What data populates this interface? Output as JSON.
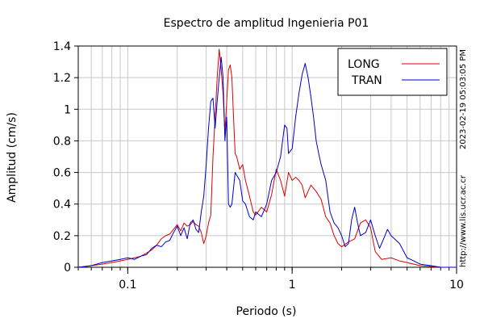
{
  "chart_data": {
    "type": "line",
    "title": "Espectro de amplitud Ingenieria P01",
    "xlabel": "Periodo (s)",
    "ylabel": "Amplitud (cm/s)",
    "xscale": "log",
    "xlim": [
      0.05,
      10
    ],
    "ylim": [
      0,
      1.4
    ],
    "x_ticks": [
      0.1,
      1,
      10
    ],
    "x_tick_labels": [
      "0.1",
      "1",
      "10"
    ],
    "y_ticks": [
      0,
      0.2,
      0.4,
      0.6,
      0.8,
      1,
      1.2,
      1.4
    ],
    "y_tick_labels": [
      "0",
      "0.2",
      "0.4",
      "0.6",
      "0.8",
      "1",
      "1.2",
      "1.4"
    ],
    "grid": true,
    "legend_position": "top-right",
    "series": [
      {
        "name": "LONG",
        "color": "#dd0000",
        "points": [
          [
            0.05,
            0.0
          ],
          [
            0.06,
            0.01
          ],
          [
            0.07,
            0.02
          ],
          [
            0.08,
            0.03
          ],
          [
            0.09,
            0.04
          ],
          [
            0.1,
            0.05
          ],
          [
            0.11,
            0.06
          ],
          [
            0.12,
            0.07
          ],
          [
            0.13,
            0.09
          ],
          [
            0.14,
            0.11
          ],
          [
            0.15,
            0.14
          ],
          [
            0.16,
            0.18
          ],
          [
            0.17,
            0.2
          ],
          [
            0.18,
            0.21
          ],
          [
            0.19,
            0.24
          ],
          [
            0.2,
            0.27
          ],
          [
            0.21,
            0.23
          ],
          [
            0.22,
            0.28
          ],
          [
            0.23,
            0.26
          ],
          [
            0.24,
            0.27
          ],
          [
            0.25,
            0.29
          ],
          [
            0.26,
            0.27
          ],
          [
            0.27,
            0.26
          ],
          [
            0.28,
            0.22
          ],
          [
            0.29,
            0.15
          ],
          [
            0.3,
            0.2
          ],
          [
            0.31,
            0.28
          ],
          [
            0.32,
            0.33
          ],
          [
            0.33,
            0.7
          ],
          [
            0.34,
            0.95
          ],
          [
            0.35,
            1.2
          ],
          [
            0.36,
            1.38
          ],
          [
            0.37,
            1.25
          ],
          [
            0.38,
            1.1
          ],
          [
            0.39,
            0.85
          ],
          [
            0.4,
            1.05
          ],
          [
            0.41,
            1.25
          ],
          [
            0.42,
            1.28
          ],
          [
            0.43,
            1.2
          ],
          [
            0.44,
            0.95
          ],
          [
            0.45,
            0.72
          ],
          [
            0.46,
            0.7
          ],
          [
            0.48,
            0.62
          ],
          [
            0.5,
            0.65
          ],
          [
            0.52,
            0.55
          ],
          [
            0.55,
            0.45
          ],
          [
            0.58,
            0.35
          ],
          [
            0.6,
            0.33
          ],
          [
            0.65,
            0.38
          ],
          [
            0.7,
            0.35
          ],
          [
            0.75,
            0.46
          ],
          [
            0.8,
            0.62
          ],
          [
            0.85,
            0.55
          ],
          [
            0.9,
            0.45
          ],
          [
            0.95,
            0.6
          ],
          [
            1.0,
            0.55
          ],
          [
            1.05,
            0.57
          ],
          [
            1.1,
            0.55
          ],
          [
            1.15,
            0.52
          ],
          [
            1.2,
            0.44
          ],
          [
            1.3,
            0.52
          ],
          [
            1.4,
            0.48
          ],
          [
            1.5,
            0.43
          ],
          [
            1.6,
            0.32
          ],
          [
            1.7,
            0.28
          ],
          [
            1.8,
            0.2
          ],
          [
            1.9,
            0.15
          ],
          [
            2.0,
            0.13
          ],
          [
            2.2,
            0.16
          ],
          [
            2.4,
            0.18
          ],
          [
            2.6,
            0.28
          ],
          [
            2.8,
            0.3
          ],
          [
            3.0,
            0.25
          ],
          [
            3.2,
            0.1
          ],
          [
            3.5,
            0.05
          ],
          [
            4.0,
            0.06
          ],
          [
            4.5,
            0.04
          ],
          [
            5.0,
            0.03
          ],
          [
            6.0,
            0.01
          ],
          [
            8.0,
            0.0
          ],
          [
            10.0,
            0.0
          ]
        ]
      },
      {
        "name": "TRAN",
        "color": "#0000cc",
        "points": [
          [
            0.05,
            0.0
          ],
          [
            0.06,
            0.01
          ],
          [
            0.07,
            0.03
          ],
          [
            0.08,
            0.04
          ],
          [
            0.09,
            0.05
          ],
          [
            0.1,
            0.06
          ],
          [
            0.11,
            0.05
          ],
          [
            0.12,
            0.07
          ],
          [
            0.13,
            0.08
          ],
          [
            0.14,
            0.12
          ],
          [
            0.15,
            0.14
          ],
          [
            0.16,
            0.13
          ],
          [
            0.17,
            0.16
          ],
          [
            0.18,
            0.17
          ],
          [
            0.19,
            0.22
          ],
          [
            0.2,
            0.26
          ],
          [
            0.21,
            0.2
          ],
          [
            0.22,
            0.25
          ],
          [
            0.23,
            0.18
          ],
          [
            0.24,
            0.28
          ],
          [
            0.25,
            0.3
          ],
          [
            0.26,
            0.24
          ],
          [
            0.27,
            0.22
          ],
          [
            0.28,
            0.35
          ],
          [
            0.29,
            0.45
          ],
          [
            0.3,
            0.65
          ],
          [
            0.31,
            0.88
          ],
          [
            0.32,
            1.05
          ],
          [
            0.33,
            1.07
          ],
          [
            0.34,
            0.88
          ],
          [
            0.35,
            1.05
          ],
          [
            0.36,
            1.2
          ],
          [
            0.37,
            1.33
          ],
          [
            0.38,
            1.2
          ],
          [
            0.39,
            0.8
          ],
          [
            0.4,
            0.95
          ],
          [
            0.41,
            0.4
          ],
          [
            0.42,
            0.38
          ],
          [
            0.43,
            0.4
          ],
          [
            0.45,
            0.6
          ],
          [
            0.48,
            0.55
          ],
          [
            0.5,
            0.42
          ],
          [
            0.52,
            0.4
          ],
          [
            0.55,
            0.32
          ],
          [
            0.58,
            0.3
          ],
          [
            0.6,
            0.35
          ],
          [
            0.65,
            0.32
          ],
          [
            0.7,
            0.4
          ],
          [
            0.75,
            0.55
          ],
          [
            0.8,
            0.6
          ],
          [
            0.85,
            0.7
          ],
          [
            0.9,
            0.9
          ],
          [
            0.93,
            0.88
          ],
          [
            0.95,
            0.72
          ],
          [
            1.0,
            0.75
          ],
          [
            1.05,
            0.95
          ],
          [
            1.1,
            1.1
          ],
          [
            1.15,
            1.22
          ],
          [
            1.2,
            1.29
          ],
          [
            1.25,
            1.2
          ],
          [
            1.3,
            1.08
          ],
          [
            1.35,
            0.95
          ],
          [
            1.4,
            0.8
          ],
          [
            1.45,
            0.72
          ],
          [
            1.5,
            0.65
          ],
          [
            1.6,
            0.55
          ],
          [
            1.7,
            0.35
          ],
          [
            1.8,
            0.28
          ],
          [
            1.9,
            0.25
          ],
          [
            2.0,
            0.2
          ],
          [
            2.1,
            0.13
          ],
          [
            2.2,
            0.15
          ],
          [
            2.3,
            0.3
          ],
          [
            2.4,
            0.38
          ],
          [
            2.5,
            0.28
          ],
          [
            2.6,
            0.2
          ],
          [
            2.8,
            0.22
          ],
          [
            3.0,
            0.3
          ],
          [
            3.2,
            0.2
          ],
          [
            3.4,
            0.12
          ],
          [
            3.6,
            0.18
          ],
          [
            3.8,
            0.24
          ],
          [
            4.0,
            0.2
          ],
          [
            4.5,
            0.15
          ],
          [
            5.0,
            0.06
          ],
          [
            5.5,
            0.04
          ],
          [
            6.0,
            0.02
          ],
          [
            7.0,
            0.01
          ],
          [
            8.0,
            0.0
          ],
          [
            10.0,
            0.0
          ]
        ]
      }
    ]
  },
  "side_notes": {
    "timestamp": "2023-02-19 05:03:05 PM",
    "website": "http://www.lis.ucr.ac.cr"
  }
}
